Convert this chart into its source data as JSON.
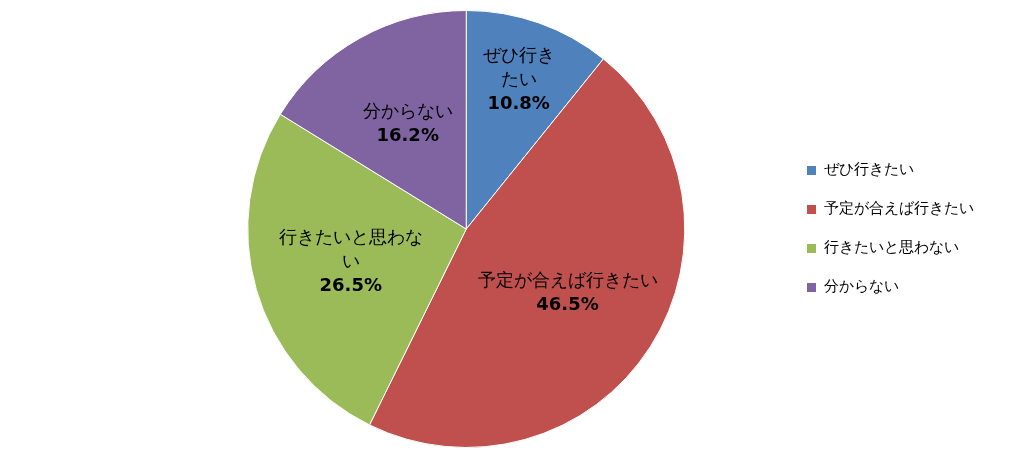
{
  "chart_data": {
    "type": "pie",
    "categories": [
      "ぜひ行きたい",
      "予定が合えば行きたい",
      "行きたいと思わない",
      "分からない"
    ],
    "values": [
      10.8,
      46.5,
      26.5,
      16.2
    ],
    "value_labels": [
      "10.8%",
      "46.5%",
      "26.5%",
      "16.2%"
    ],
    "colors": [
      "#4f81bd",
      "#c0504d",
      "#9bbb59",
      "#8064a2"
    ],
    "legend": "right"
  }
}
